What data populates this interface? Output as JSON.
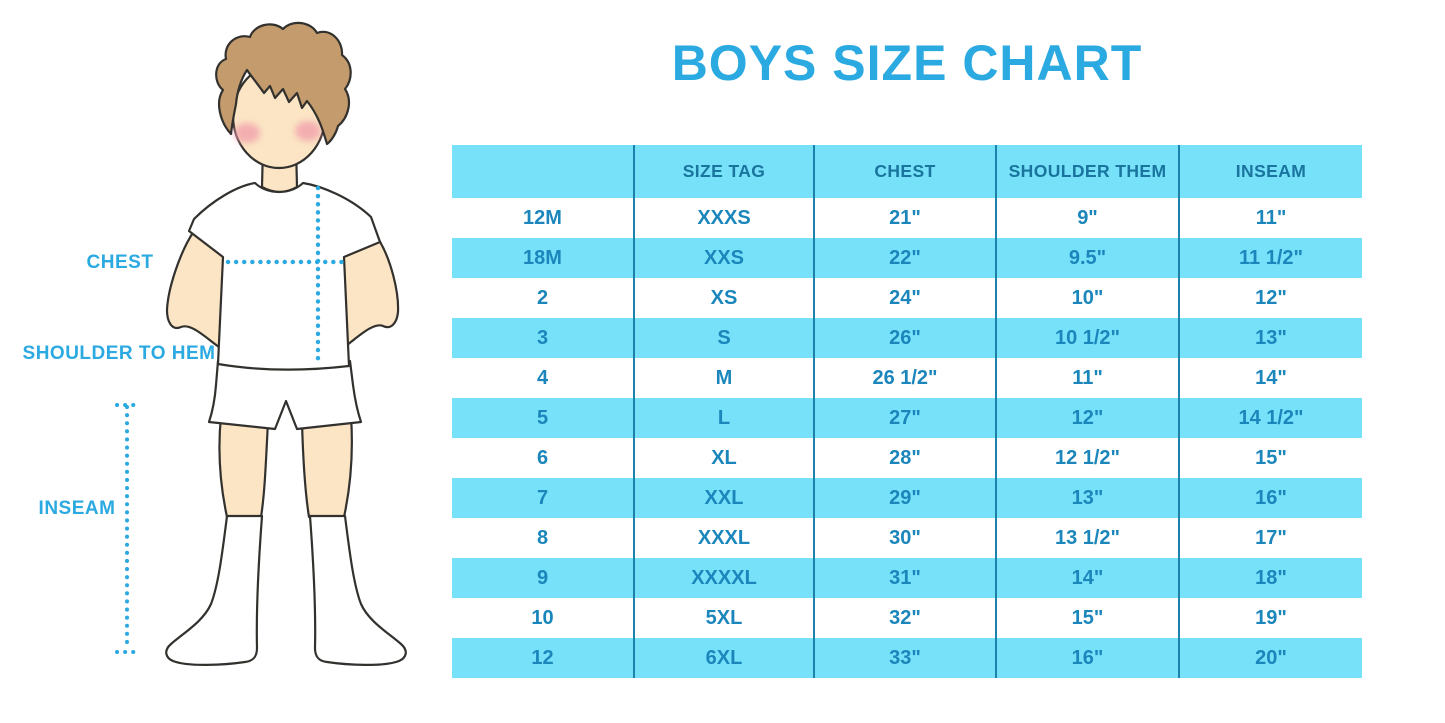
{
  "title": "BOYS SIZE CHART",
  "colors": {
    "accent": "#2BA9E1",
    "table_header_bg": "#77E1F9",
    "table_row_alt_bg": "#77E1F9",
    "table_divider": "#1E81AB",
    "table_header_text": "#19749E",
    "table_cell_text": "#1B86BB",
    "skin": "#FBE5C4",
    "hair": "#C49B6C",
    "outline": "#33312E",
    "blush": "#F2A0AC"
  },
  "figure": {
    "labels": {
      "chest": "CHEST",
      "shoulder_to_hem": "SHOULDER TO HEM",
      "inseam": "INSEAM"
    }
  },
  "chart_data": {
    "type": "table",
    "title": "BOYS SIZE CHART",
    "columns": [
      "",
      "SIZE TAG",
      "CHEST",
      "SHOULDER THEM",
      "INSEAM"
    ],
    "rows": [
      [
        "12M",
        "XXXS",
        "21\"",
        "9\"",
        "11\""
      ],
      [
        "18M",
        "XXS",
        "22\"",
        "9.5\"",
        "11 1/2\""
      ],
      [
        "2",
        "XS",
        "24\"",
        "10\"",
        "12\""
      ],
      [
        "3",
        "S",
        "26\"",
        "10 1/2\"",
        "13\""
      ],
      [
        "4",
        "M",
        "26 1/2\"",
        "11\"",
        "14\""
      ],
      [
        "5",
        "L",
        "27\"",
        "12\"",
        "14 1/2\""
      ],
      [
        "6",
        "XL",
        "28\"",
        "12 1/2\"",
        "15\""
      ],
      [
        "7",
        "XXL",
        "29\"",
        "13\"",
        "16\""
      ],
      [
        "8",
        "XXXL",
        "30\"",
        "13 1/2\"",
        "17\""
      ],
      [
        "9",
        "XXXXL",
        "31\"",
        "14\"",
        "18\""
      ],
      [
        "10",
        "5XL",
        "32\"",
        "15\"",
        "19\""
      ],
      [
        "12",
        "6XL",
        "33\"",
        "16\"",
        "20\""
      ]
    ]
  }
}
